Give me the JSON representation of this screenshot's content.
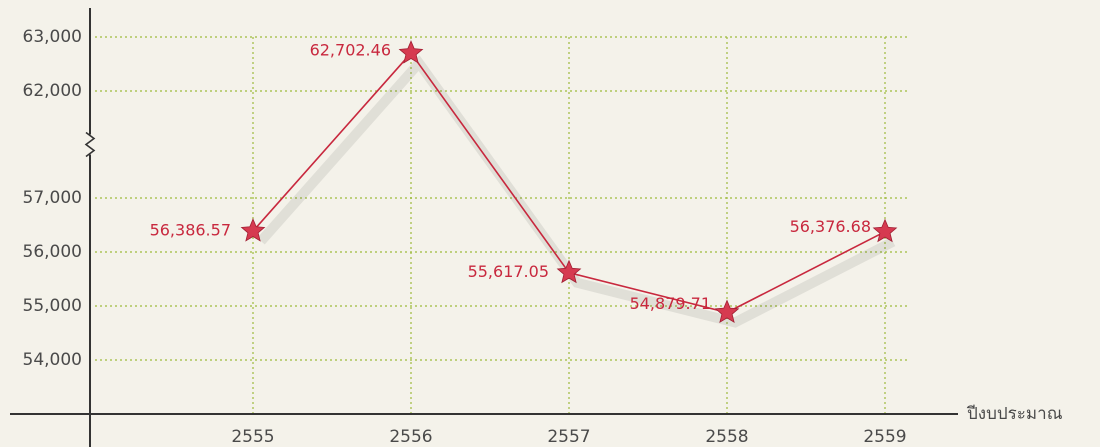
{
  "chart_data": {
    "type": "line",
    "categories": [
      "2555",
      "2556",
      "2557",
      "2558",
      "2559"
    ],
    "values": [
      56386.57,
      62702.46,
      55617.05,
      54879.71,
      56376.68
    ],
    "value_labels": [
      "56,386.57",
      "62,702.46",
      "55,617.05",
      "54,879.71",
      "56,376.68"
    ],
    "color": "#c8283e",
    "marker_color": "#d63a50",
    "x_label": "ปีงบประมาณ",
    "ylim": [
      53000,
      63500
    ],
    "axis_break": [
      57000,
      62000
    ],
    "yticks": [
      {
        "value": 54000,
        "label": "54,000"
      },
      {
        "value": 55000,
        "label": "55,000"
      },
      {
        "value": 56000,
        "label": "56,000"
      },
      {
        "value": 57000,
        "label": "57,000"
      },
      {
        "value": 62000,
        "label": "62,000"
      },
      {
        "value": 63000,
        "label": "63,000"
      }
    ],
    "grid": true
  }
}
